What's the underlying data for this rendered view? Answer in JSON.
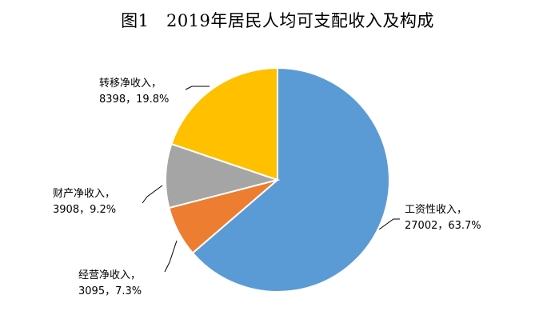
{
  "chart_data": {
    "type": "pie",
    "title": "图1　2019年居民人均可支配收入及构成",
    "slices": [
      {
        "name": "工资性收入",
        "value": 27002,
        "percent_label": "63.7%",
        "value_label": "27002，63.7%",
        "color": "#5b9bd5"
      },
      {
        "name": "经营净收入",
        "value": 3095,
        "percent_label": "7.3%",
        "value_label": "3095，7.3%",
        "color": "#ed7d31"
      },
      {
        "name": "财产净收入",
        "value": 3908,
        "percent_label": "9.2%",
        "value_label": "3908，9.2%",
        "color": "#a5a5a5"
      },
      {
        "name": "转移净收入",
        "value": 8398,
        "percent_label": "19.8%",
        "value_label": "8398，19.8%",
        "color": "#ffc000"
      }
    ],
    "start_angle_deg": 0,
    "direction": "clockwise",
    "slice_border_color": "#ffffff"
  }
}
